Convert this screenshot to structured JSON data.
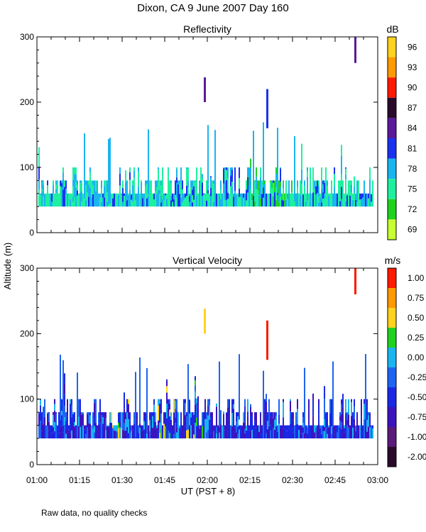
{
  "figure": {
    "title": "Dixon, CA  9 June 2007  Day 160",
    "ylabel": "Altitude (m)",
    "xlabel": "UT  (PST + 8)",
    "x_ticks": [
      "01:00",
      "01:15",
      "01:30",
      "01:45",
      "02:00",
      "02:15",
      "02:30",
      "02:45",
      "03:00"
    ],
    "footnote": "Raw data, no quality checks"
  },
  "chart_data": [
    {
      "type": "heatmap",
      "title": "Reflectivity",
      "xlabel": "UT  (PST + 8)",
      "ylabel": "Altitude (m)",
      "xlim": [
        "01:00",
        "03:00"
      ],
      "ylim": [
        0,
        300
      ],
      "y_ticks": [
        0,
        100,
        200,
        300
      ],
      "colorbar": {
        "unit": "dB",
        "labels": [
          "96",
          "93",
          "90",
          "87",
          "84",
          "81",
          "78",
          "75",
          "72",
          "69"
        ],
        "colors": [
          "#ffd21e",
          "#ff9a00",
          "#ff1a00",
          "#2a0a2a",
          "#5a1a9a",
          "#1a32f0",
          "#1ab4f0",
          "#1ef0a0",
          "#1ed21e",
          "#c8ff32"
        ]
      },
      "description_series": [
        {
          "name": "main echo layer",
          "alt_min": 40,
          "alt_max": 100,
          "typical_dB": "75-81"
        },
        {
          "name": "plume 02:00",
          "time": "01:59",
          "alt_min": 200,
          "alt_max": 238,
          "dB": 84
        },
        {
          "name": "plume 02:20",
          "time": "02:21",
          "alt_min": 160,
          "alt_max": 220,
          "dB": 81
        },
        {
          "name": "plume 02:52",
          "time": "02:52",
          "alt_min": 260,
          "alt_max": 300,
          "dB": 84
        }
      ]
    },
    {
      "type": "heatmap",
      "title": "Vertical Velocity",
      "xlabel": "UT  (PST + 8)",
      "ylabel": "Altitude (m)",
      "xlim": [
        "01:00",
        "03:00"
      ],
      "ylim": [
        0,
        300
      ],
      "y_ticks": [
        0,
        100,
        200,
        300
      ],
      "colorbar": {
        "unit": "m/s",
        "labels": [
          "1.00",
          "0.75",
          "0.50",
          "0.25",
          "0.00",
          "-0.25",
          "-0.50",
          "-0.75",
          "-1.00",
          "-2.00"
        ],
        "colors": [
          "#ff1a00",
          "#ff9a00",
          "#ffd21e",
          "#1ed21e",
          "#1ab4f0",
          "#1e64f0",
          "#1a28e6",
          "#3c14be",
          "#5a1a7a",
          "#2a0a2a"
        ]
      },
      "description_series": [
        {
          "name": "main layer",
          "alt_min": 40,
          "alt_max": 100,
          "typical_ms": "-0.50 to -0.75"
        },
        {
          "name": "updraft 02:00",
          "time": "01:59",
          "alt_min": 200,
          "alt_max": 238,
          "ms": 0.5
        },
        {
          "name": "updraft 02:20",
          "time": "02:21",
          "alt_min": 160,
          "alt_max": 220,
          "ms": 1.0
        },
        {
          "name": "updraft 02:52",
          "time": "02:52",
          "alt_min": 260,
          "alt_max": 300,
          "ms": 1.0
        }
      ]
    }
  ]
}
